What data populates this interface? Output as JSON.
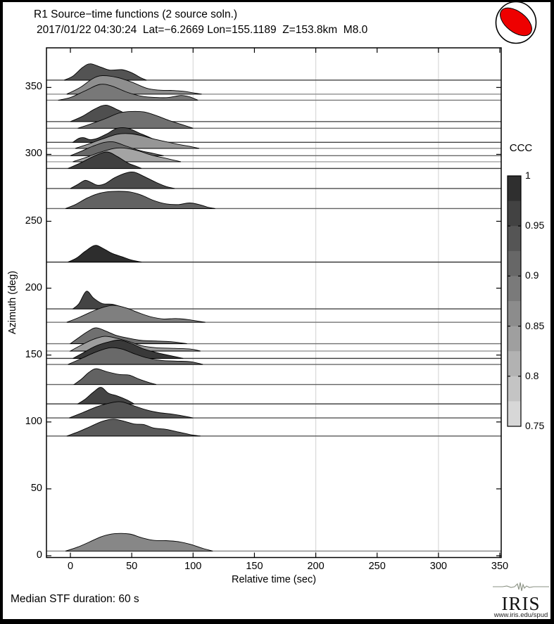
{
  "header": {
    "title": "R1 Source−time functions (2 source soln.)",
    "subtitle": "2017/01/22 04:30:24  Lat=−6.2669 Lon=155.1189  Z=153.8km  M8.0"
  },
  "footer": {
    "median_note": "Median STF duration: 60 s",
    "logo_text": "IRIS",
    "logo_url": "www.iris.edu/spud"
  },
  "beachball": {
    "fill": "#ee0000",
    "background": "#ffffff",
    "outline": "#000000"
  },
  "chart_data": {
    "type": "area",
    "subtype": "ridgeline-source-time-functions",
    "title": "R1 Source−time functions (2 source soln.)",
    "xlabel": "Relative time (sec)",
    "ylabel": "Azimuth (deg)",
    "xlim": [
      -20,
      351
    ],
    "ylim": [
      -1.5,
      380
    ],
    "xticks": [
      0,
      50,
      100,
      150,
      200,
      250,
      300,
      350
    ],
    "yticks": [
      0,
      50,
      100,
      150,
      200,
      250,
      300,
      350
    ],
    "gridlines_x": [
      100,
      200,
      300
    ],
    "grid_color": "#d9d9d9",
    "colorbar": {
      "label": "CCC",
      "min": 0.75,
      "max": 1.0,
      "ticks": [
        1,
        0.95,
        0.9,
        0.85,
        0.8,
        0.75
      ],
      "tick_labels": [
        "1",
        "0.95",
        "0.9",
        "0.85",
        "0.8",
        "0.75"
      ],
      "color_at_max": "#262626",
      "color_at_min": "#e0e0e0",
      "steps": 10
    },
    "traces": [
      {
        "azimuth": 355.5,
        "ccc": 0.94,
        "points": [
          [
            -5,
            0
          ],
          [
            2,
            3
          ],
          [
            10,
            9.5
          ],
          [
            16,
            12.2
          ],
          [
            24,
            10
          ],
          [
            32,
            7.5
          ],
          [
            42,
            7.8
          ],
          [
            50,
            5.5
          ],
          [
            57,
            2
          ],
          [
            62,
            0
          ]
        ]
      },
      {
        "azimuth": 345.0,
        "ccc": 0.86,
        "points": [
          [
            -3,
            0
          ],
          [
            8,
            5
          ],
          [
            18,
            11.5
          ],
          [
            26,
            13.8
          ],
          [
            38,
            12.5
          ],
          [
            50,
            9
          ],
          [
            62,
            4.5
          ],
          [
            72,
            3
          ],
          [
            82,
            2.8
          ],
          [
            92,
            2.2
          ],
          [
            100,
            1
          ],
          [
            107,
            0
          ]
        ]
      },
      {
        "azimuth": 340.5,
        "ccc": 0.89,
        "points": [
          [
            -10,
            0
          ],
          [
            0,
            2
          ],
          [
            12,
            7
          ],
          [
            24,
            11.8
          ],
          [
            34,
            10.5
          ],
          [
            46,
            6
          ],
          [
            58,
            3
          ],
          [
            70,
            2
          ],
          [
            80,
            2
          ],
          [
            90,
            3.5
          ],
          [
            97,
            2.5
          ],
          [
            104,
            0
          ]
        ]
      },
      {
        "azimuth": 324.5,
        "ccc": 0.945,
        "points": [
          [
            0,
            0
          ],
          [
            10,
            4
          ],
          [
            20,
            9.5
          ],
          [
            29,
            12.3
          ],
          [
            38,
            9
          ],
          [
            47,
            5
          ],
          [
            54,
            2
          ],
          [
            60,
            0
          ]
        ]
      },
      {
        "azimuth": 319.5,
        "ccc": 0.9,
        "points": [
          [
            6,
            0
          ],
          [
            16,
            3
          ],
          [
            28,
            7
          ],
          [
            40,
            11.5
          ],
          [
            50,
            12.6
          ],
          [
            60,
            12.2
          ],
          [
            70,
            9.5
          ],
          [
            80,
            6
          ],
          [
            90,
            3
          ],
          [
            100,
            0
          ]
        ]
      },
      {
        "azimuth": 309.0,
        "ccc": 0.96,
        "points": [
          [
            2,
            0
          ],
          [
            7,
            3
          ],
          [
            11,
            3.5
          ],
          [
            16,
            2
          ],
          [
            22,
            3
          ],
          [
            30,
            6.5
          ],
          [
            38,
            10.5
          ],
          [
            47,
            10.5
          ],
          [
            56,
            7
          ],
          [
            65,
            3.5
          ],
          [
            73,
            0
          ]
        ]
      },
      {
        "azimuth": 304.5,
        "ccc": 0.85,
        "points": [
          [
            4,
            0
          ],
          [
            14,
            3
          ],
          [
            26,
            7
          ],
          [
            38,
            10.5
          ],
          [
            48,
            11
          ],
          [
            58,
            9.5
          ],
          [
            68,
            7
          ],
          [
            78,
            5
          ],
          [
            88,
            3
          ],
          [
            97,
            1.5
          ],
          [
            105,
            0
          ]
        ]
      },
      {
        "azimuth": 299.0,
        "ccc": 0.91,
        "points": [
          [
            0,
            0
          ],
          [
            8,
            3
          ],
          [
            18,
            7
          ],
          [
            28,
            10
          ],
          [
            36,
            10.2
          ],
          [
            46,
            7
          ],
          [
            56,
            4
          ],
          [
            66,
            2
          ],
          [
            76,
            0
          ]
        ]
      },
      {
        "azimuth": 294.5,
        "ccc": 0.83,
        "points": [
          [
            2,
            0
          ],
          [
            12,
            3
          ],
          [
            24,
            7
          ],
          [
            36,
            10
          ],
          [
            46,
            10
          ],
          [
            56,
            8
          ],
          [
            66,
            5
          ],
          [
            78,
            2.5
          ],
          [
            90,
            0
          ]
        ]
      },
      {
        "azimuth": 289.5,
        "ccc": 0.965,
        "points": [
          [
            -2,
            0
          ],
          [
            8,
            4
          ],
          [
            20,
            9.5
          ],
          [
            30,
            12.3
          ],
          [
            38,
            9
          ],
          [
            47,
            4
          ],
          [
            54,
            1.5
          ],
          [
            58,
            0
          ]
        ]
      },
      {
        "azimuth": 274.5,
        "ccc": 0.95,
        "points": [
          [
            0,
            0
          ],
          [
            6,
            3
          ],
          [
            12,
            6.1
          ],
          [
            17,
            4.5
          ],
          [
            22,
            2.5
          ],
          [
            28,
            3.5
          ],
          [
            36,
            8
          ],
          [
            45,
            11.5
          ],
          [
            52,
            12.2
          ],
          [
            60,
            9
          ],
          [
            70,
            4.5
          ],
          [
            78,
            1.5
          ],
          [
            85,
            0
          ]
        ]
      },
      {
        "azimuth": 259.5,
        "ccc": 0.92,
        "points": [
          [
            -4,
            0
          ],
          [
            4,
            3
          ],
          [
            14,
            8
          ],
          [
            24,
            11.5
          ],
          [
            34,
            12.8
          ],
          [
            48,
            12.5
          ],
          [
            58,
            10
          ],
          [
            68,
            6
          ],
          [
            78,
            3.5
          ],
          [
            88,
            3
          ],
          [
            97,
            4.2
          ],
          [
            105,
            3
          ],
          [
            112,
            1
          ],
          [
            118,
            0
          ]
        ]
      },
      {
        "azimuth": 219.5,
        "ccc": 0.99,
        "points": [
          [
            -2,
            0
          ],
          [
            5,
            3
          ],
          [
            12,
            8
          ],
          [
            20,
            12.5
          ],
          [
            27,
            10
          ],
          [
            34,
            6.5
          ],
          [
            42,
            4
          ],
          [
            50,
            1.5
          ],
          [
            58,
            0
          ]
        ]
      },
      {
        "azimuth": 184.5,
        "ccc": 0.96,
        "points": [
          [
            2,
            0
          ],
          [
            7,
            4
          ],
          [
            13,
            13.2
          ],
          [
            19,
            8
          ],
          [
            26,
            4
          ],
          [
            34,
            3.5
          ],
          [
            42,
            1.5
          ],
          [
            48,
            0
          ]
        ]
      },
      {
        "azimuth": 174.5,
        "ccc": 0.88,
        "points": [
          [
            -3,
            0
          ],
          [
            8,
            4
          ],
          [
            20,
            9
          ],
          [
            30,
            12
          ],
          [
            37,
            12.6
          ],
          [
            46,
            10.5
          ],
          [
            56,
            7
          ],
          [
            66,
            4
          ],
          [
            76,
            2.5
          ],
          [
            86,
            2.8
          ],
          [
            96,
            2
          ],
          [
            103,
            1
          ],
          [
            110,
            0
          ]
        ]
      },
      {
        "azimuth": 158.5,
        "ccc": 0.9,
        "points": [
          [
            0,
            0
          ],
          [
            6,
            4
          ],
          [
            14,
            9
          ],
          [
            21,
            11.9
          ],
          [
            30,
            9
          ],
          [
            38,
            6
          ],
          [
            48,
            4
          ],
          [
            58,
            2.5
          ],
          [
            70,
            2
          ],
          [
            82,
            1.5
          ],
          [
            95,
            0
          ]
        ]
      },
      {
        "azimuth": 153.0,
        "ccc": 0.84,
        "points": [
          [
            0,
            0
          ],
          [
            8,
            4
          ],
          [
            18,
            8.5
          ],
          [
            28,
            11
          ],
          [
            38,
            9.5
          ],
          [
            48,
            7
          ],
          [
            58,
            4
          ],
          [
            70,
            2.5
          ],
          [
            85,
            2
          ],
          [
            98,
            1.5
          ],
          [
            106,
            0
          ]
        ]
      },
      {
        "azimuth": 147.5,
        "ccc": 0.975,
        "points": [
          [
            2,
            0
          ],
          [
            10,
            4
          ],
          [
            20,
            9
          ],
          [
            30,
            12
          ],
          [
            40,
            13.7
          ],
          [
            50,
            11
          ],
          [
            60,
            7
          ],
          [
            72,
            4
          ],
          [
            82,
            2
          ],
          [
            92,
            0
          ]
        ]
      },
      {
        "azimuth": 143.0,
        "ccc": 0.91,
        "points": [
          [
            -2,
            0
          ],
          [
            8,
            4
          ],
          [
            20,
            9
          ],
          [
            32,
            12.4
          ],
          [
            42,
            11.5
          ],
          [
            52,
            8
          ],
          [
            62,
            5
          ],
          [
            74,
            3
          ],
          [
            86,
            2.5
          ],
          [
            98,
            2
          ],
          [
            108,
            0
          ]
        ]
      },
      {
        "azimuth": 128.0,
        "ccc": 0.92,
        "points": [
          [
            3,
            0
          ],
          [
            9,
            4
          ],
          [
            15,
            9
          ],
          [
            21,
            11.8
          ],
          [
            30,
            9.5
          ],
          [
            40,
            7.5
          ],
          [
            48,
            7
          ],
          [
            56,
            4
          ],
          [
            64,
            1.5
          ],
          [
            70,
            0
          ]
        ]
      },
      {
        "azimuth": 113.5,
        "ccc": 0.96,
        "points": [
          [
            6,
            0
          ],
          [
            12,
            3.5
          ],
          [
            19,
            9
          ],
          [
            25,
            12.4
          ],
          [
            31,
            8
          ],
          [
            38,
            6
          ],
          [
            46,
            3
          ],
          [
            52,
            0
          ]
        ]
      },
      {
        "azimuth": 103.0,
        "ccc": 0.94,
        "points": [
          [
            -1,
            0
          ],
          [
            10,
            4
          ],
          [
            22,
            8.5
          ],
          [
            34,
            11.5
          ],
          [
            42,
            12
          ],
          [
            52,
            9
          ],
          [
            62,
            6
          ],
          [
            72,
            4
          ],
          [
            82,
            3
          ],
          [
            92,
            1.5
          ],
          [
            100,
            0
          ]
        ]
      },
      {
        "azimuth": 89.5,
        "ccc": 0.93,
        "points": [
          [
            -3,
            0
          ],
          [
            6,
            3
          ],
          [
            16,
            7
          ],
          [
            26,
            11
          ],
          [
            35,
            12.6
          ],
          [
            44,
            11
          ],
          [
            52,
            9
          ],
          [
            60,
            8.5
          ],
          [
            68,
            6
          ],
          [
            78,
            5
          ],
          [
            88,
            3
          ],
          [
            98,
            1
          ],
          [
            106,
            0
          ]
        ]
      },
      {
        "azimuth": 3.5,
        "ccc": 0.87,
        "points": [
          [
            -4,
            0
          ],
          [
            6,
            3
          ],
          [
            16,
            7
          ],
          [
            26,
            11
          ],
          [
            36,
            13
          ],
          [
            48,
            12.8
          ],
          [
            58,
            10
          ],
          [
            68,
            8
          ],
          [
            78,
            7.8
          ],
          [
            88,
            7
          ],
          [
            98,
            5
          ],
          [
            108,
            2
          ],
          [
            116,
            0
          ]
        ]
      }
    ]
  }
}
